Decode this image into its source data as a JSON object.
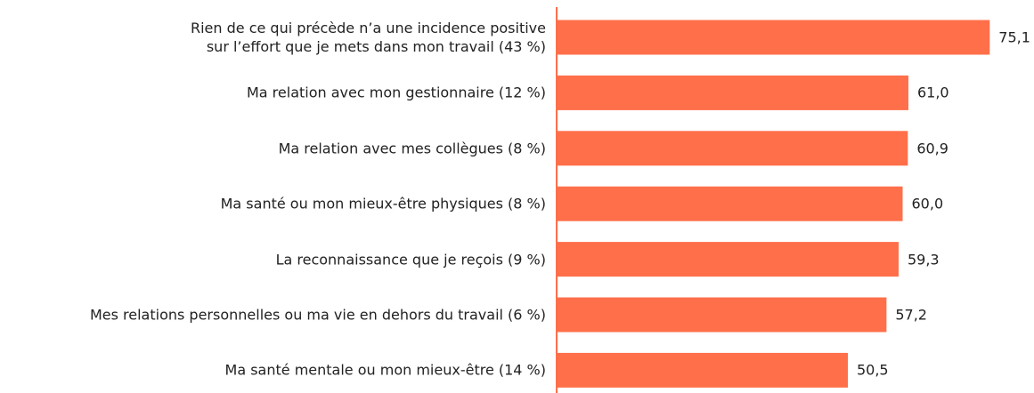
{
  "chart_data": {
    "type": "bar",
    "orientation": "horizontal",
    "categories": [
      "Rien de ce qui précède n’a une incidence positive\nsur l’effort que je mets dans mon travail (43 %)",
      "Ma relation avec mon gestionnaire (12 %)",
      "Ma relation avec mes collègues (8 %)",
      "Ma santé ou mon mieux-être physiques (8 %)",
      "La reconnaissance que je reçois (9 %)",
      "Mes relations personnelles ou ma vie en dehors du travail (6 %)",
      "Ma santé mentale ou mon mieux-être (14 %)"
    ],
    "values": [
      75.1,
      61.0,
      60.9,
      60.0,
      59.3,
      57.2,
      50.5
    ],
    "value_labels": [
      "75,1",
      "61,0",
      "60,9",
      "60,0",
      "59,3",
      "57,2",
      "50,5"
    ],
    "color": "#ff6f4a",
    "xlim": [
      0,
      80
    ]
  }
}
